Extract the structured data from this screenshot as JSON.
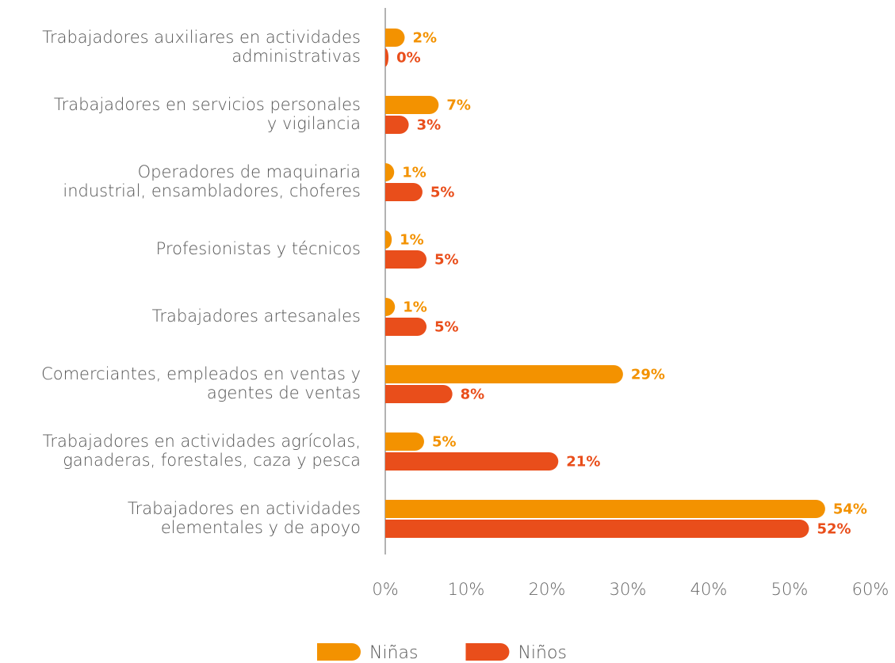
{
  "chart_data": {
    "type": "bar",
    "orientation": "horizontal",
    "categories": [
      [
        "Trabajadores auxiliares en actividades",
        "administrativas"
      ],
      [
        "Trabajadores en servicios personales",
        "y vigilancia"
      ],
      [
        "Operadores de maquinaria",
        "industrial, ensambladores, choferes"
      ],
      [
        "Profesionistas y técnicos"
      ],
      [
        "Trabajadores artesanales"
      ],
      [
        "Comerciantes, empleados en ventas y",
        "agentes de ventas"
      ],
      [
        "Trabajadores en actividades agrícolas,",
        "ganaderas, forestales, caza y pesca"
      ],
      [
        "Trabajadores en actividades",
        "elementales y de apoyo"
      ]
    ],
    "series": [
      {
        "name": "Niñas",
        "color": "#f39200",
        "values": [
          2.4,
          6.6,
          1.1,
          0.8,
          1.2,
          29.4,
          4.8,
          54.4
        ],
        "value_labels": [
          "2%",
          "7%",
          "1%",
          "1%",
          "1%",
          "29%",
          "5%",
          "54%"
        ]
      },
      {
        "name": "Niños",
        "color": "#e94e1b",
        "values": [
          0.4,
          2.9,
          4.6,
          5.1,
          5.1,
          8.3,
          21.4,
          52.4
        ],
        "value_labels": [
          "0%",
          "3%",
          "5%",
          "5%",
          "5%",
          "8%",
          "21%",
          "52%"
        ]
      }
    ],
    "xlim": [
      0,
      60
    ],
    "xticks": [
      {
        "value": 0,
        "label": "0%"
      },
      {
        "value": 10,
        "label": "10%"
      },
      {
        "value": 20,
        "label": "20%"
      },
      {
        "value": 30,
        "label": "30%"
      },
      {
        "value": 40,
        "label": "40%"
      },
      {
        "value": 50,
        "label": "50%"
      },
      {
        "value": 60,
        "label": "60%"
      }
    ],
    "legend": "bottom"
  }
}
